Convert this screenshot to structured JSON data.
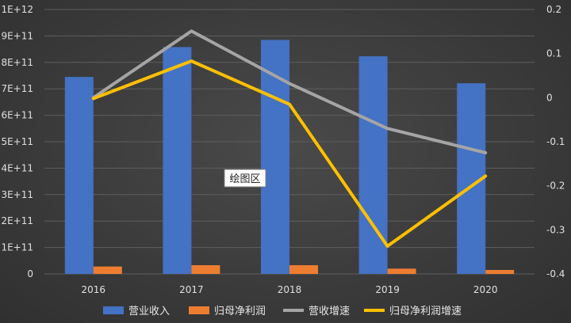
{
  "chart_data": {
    "type": "bar",
    "categories": [
      "2016",
      "2017",
      "2018",
      "2019",
      "2020"
    ],
    "series": [
      {
        "name": "营业收入",
        "kind": "bar",
        "axis": "left",
        "color": "#4472c4",
        "values": [
          745000000000.0,
          858000000000.0,
          885000000000.0,
          823000000000.0,
          721000000000.0
        ]
      },
      {
        "name": "归母净利润",
        "kind": "bar",
        "axis": "left",
        "color": "#ed7d31",
        "values": [
          28000000000.0,
          33000000000.0,
          33000000000.0,
          20000000000.0,
          15000000000.0
        ]
      },
      {
        "name": "营收增速",
        "kind": "line",
        "axis": "right",
        "color": "#a5a5a5",
        "values": [
          0.0,
          0.151,
          0.032,
          -0.07,
          -0.125
        ]
      },
      {
        "name": "归母净利润增速",
        "kind": "line",
        "axis": "right",
        "color": "#ffc000",
        "values": [
          -0.002,
          0.083,
          -0.015,
          -0.337,
          -0.178
        ]
      }
    ],
    "y_left": {
      "ylim": [
        0,
        1000000000000.0
      ],
      "ticks": [
        {
          "value": 0,
          "label": "0"
        },
        {
          "value": 100000000000.0,
          "label": "1E+11"
        },
        {
          "value": 200000000000.0,
          "label": "2E+11"
        },
        {
          "value": 300000000000.0,
          "label": "3E+11"
        },
        {
          "value": 400000000000.0,
          "label": "4E+11"
        },
        {
          "value": 500000000000.0,
          "label": "5E+11"
        },
        {
          "value": 600000000000.0,
          "label": "6E+11"
        },
        {
          "value": 700000000000.0,
          "label": "7E+11"
        },
        {
          "value": 800000000000.0,
          "label": "8E+11"
        },
        {
          "value": 900000000000.0,
          "label": "9E+11"
        },
        {
          "value": 1000000000000.0,
          "label": "1E+12"
        }
      ]
    },
    "y_right": {
      "ylim": [
        -0.4,
        0.2
      ],
      "ticks": [
        {
          "value": 0.2,
          "label": "0.2"
        },
        {
          "value": 0.1,
          "label": "0.1"
        },
        {
          "value": 0,
          "label": "0"
        },
        {
          "value": -0.1,
          "label": "-0.1"
        },
        {
          "value": -0.2,
          "label": "-0.2"
        },
        {
          "value": -0.3,
          "label": "-0.3"
        },
        {
          "value": -0.4,
          "label": "-0.4"
        }
      ]
    },
    "grid": true,
    "legend": "bottom",
    "annotation": "绘图区"
  }
}
